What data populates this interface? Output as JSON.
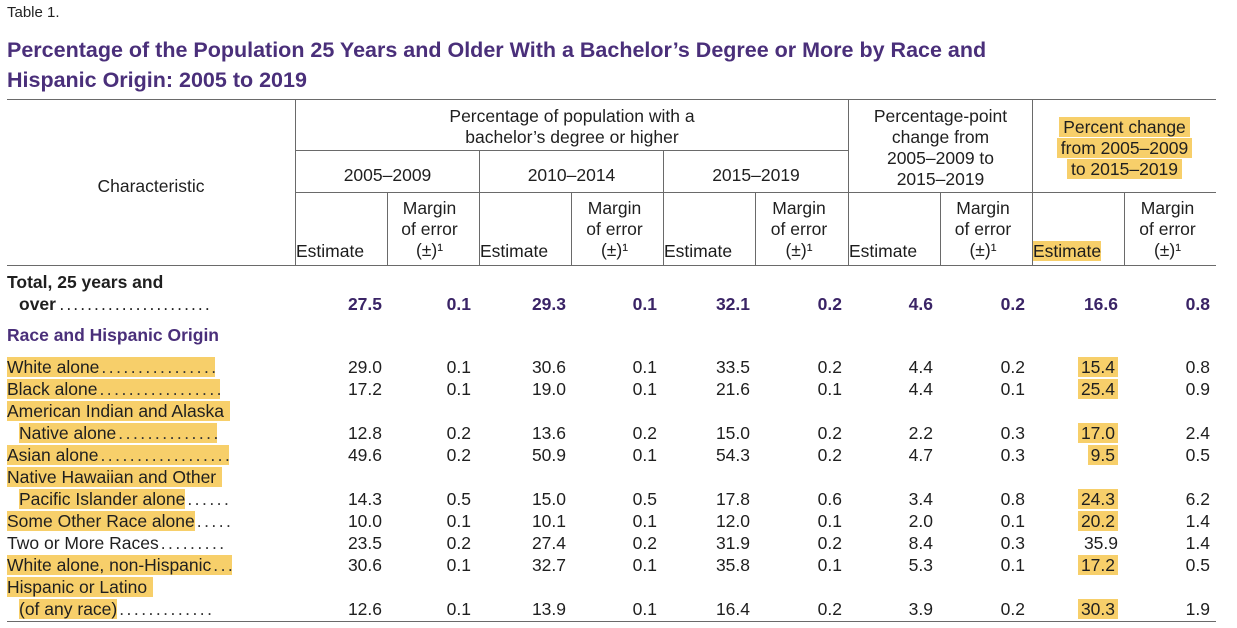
{
  "table_label": "Table 1.",
  "title_line1": "Percentage of the Population 25 Years and Older With a Bachelor’s Degree or More by Race and",
  "title_line2": "Hispanic Origin: 2005 to 2019",
  "header": {
    "characteristic": "Characteristic",
    "group_pct_line1": "Percentage of population with a",
    "group_pct_line2": "bachelor’s degree or higher",
    "group_pp_line1": "Percentage-point",
    "group_pp_line2": "change from",
    "group_pp_line3": "2005–2009 to",
    "group_pp_line4": "2015–2019",
    "group_pc_line1": "Percent change",
    "group_pc_line2": "from 2005–2009",
    "group_pc_line3": "to 2015–2019",
    "period1": "2005–2009",
    "period2": "2010–2014",
    "period3": "2015–2019",
    "estimate": "Estimate",
    "moe_line1": "Margin",
    "moe_line2": "of error",
    "moe_line3": "(±)¹"
  },
  "total": {
    "label_line1": "Total, 25 years and",
    "label_line2": "over",
    "values": [
      "27.5",
      "0.1",
      "29.3",
      "0.1",
      "32.1",
      "0.2",
      "4.6",
      "0.2",
      "16.6",
      "0.8"
    ]
  },
  "section_title": "Race and Hispanic Origin",
  "rows": [
    {
      "label": "White alone",
      "dots": "................",
      "values": [
        "29.0",
        "0.1",
        "30.6",
        "0.1",
        "33.5",
        "0.2",
        "4.4",
        "0.2",
        "15.4",
        "0.8"
      ]
    },
    {
      "label": "Black alone",
      "dots": ".................",
      "values": [
        "17.2",
        "0.1",
        "19.0",
        "0.1",
        "21.6",
        "0.1",
        "4.4",
        "0.1",
        "25.4",
        "0.9"
      ]
    },
    {
      "label_pre": "American Indian and Alaska",
      "label": "Native alone",
      "dots": "..............",
      "values": [
        "12.8",
        "0.2",
        "13.6",
        "0.2",
        "15.0",
        "0.2",
        "2.2",
        "0.3",
        "17.0",
        "2.4"
      ]
    },
    {
      "label": "Asian alone",
      "dots": "..................",
      "values": [
        "49.6",
        "0.2",
        "50.9",
        "0.1",
        "54.3",
        "0.2",
        "4.7",
        "0.3",
        "9.5",
        "0.5"
      ]
    },
    {
      "label_pre": "Native Hawaiian and Other",
      "label": "Pacific Islander alone",
      "dots": "......",
      "values": [
        "14.3",
        "0.5",
        "15.0",
        "0.5",
        "17.8",
        "0.6",
        "3.4",
        "0.8",
        "24.3",
        "6.2"
      ]
    },
    {
      "label": "Some Other Race alone",
      "dots": ".....",
      "values": [
        "10.0",
        "0.1",
        "10.1",
        "0.1",
        "12.0",
        "0.1",
        "2.0",
        "0.1",
        "20.2",
        "1.4"
      ]
    },
    {
      "label": "Two or More Races",
      "dots": ".........",
      "values": [
        "23.5",
        "0.2",
        "27.4",
        "0.2",
        "31.9",
        "0.2",
        "8.4",
        "0.3",
        "35.9",
        "1.4"
      ]
    },
    {
      "label": "White alone, non-Hispanic",
      "dots": "...",
      "values": [
        "30.6",
        "0.1",
        "32.7",
        "0.1",
        "35.8",
        "0.1",
        "5.3",
        "0.1",
        "17.2",
        "0.5"
      ]
    },
    {
      "label_pre": "Hispanic or Latino",
      "label": "(of any race)",
      "dots": ".............",
      "values": [
        "12.6",
        "0.1",
        "13.9",
        "0.1",
        "16.4",
        "0.2",
        "3.9",
        "0.2",
        "30.3",
        "1.9"
      ]
    }
  ]
}
